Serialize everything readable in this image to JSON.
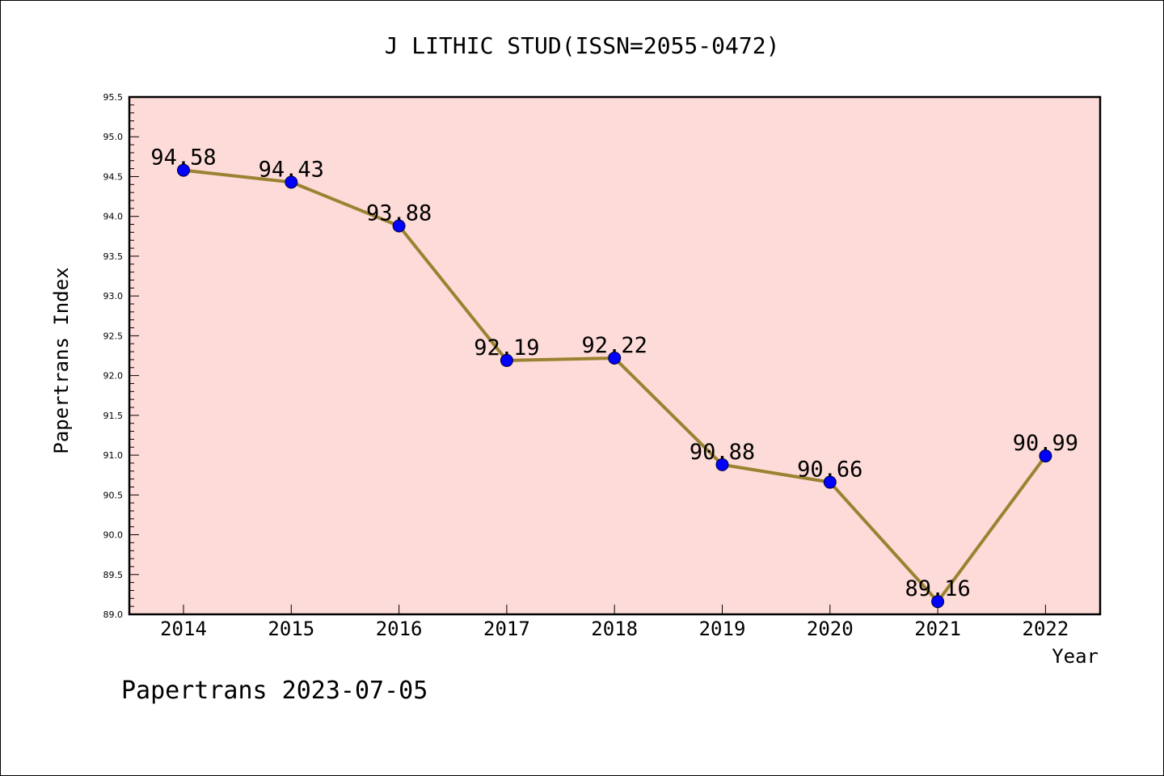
{
  "chart_data": {
    "type": "line",
    "title": "J LITHIC STUD(ISSN=2055-0472)",
    "xlabel": "Year",
    "ylabel": "Papertrans Index",
    "x": [
      "2014",
      "2015",
      "2016",
      "2017",
      "2018",
      "2019",
      "2020",
      "2021",
      "2022"
    ],
    "values": [
      94.58,
      94.43,
      93.88,
      92.19,
      92.22,
      90.88,
      90.66,
      89.16,
      90.99
    ],
    "data_labels": [
      "94.58",
      "94.43",
      "93.88",
      "92.19",
      "92.22",
      "90.88",
      "90.66",
      "89.16",
      "90.99"
    ],
    "ylim": [
      89.0,
      95.5
    ],
    "yticks": [
      "89.0",
      "89.5",
      "90.0",
      "90.5",
      "91.0",
      "91.5",
      "92.0",
      "92.5",
      "93.0",
      "93.5",
      "94.0",
      "94.5",
      "95.0",
      "95.5"
    ],
    "grid": false,
    "footer": "Papertrans 2023-07-05",
    "colors": {
      "plot_background": "#fddbd8",
      "line": "#9b8232",
      "marker": "#0000ff"
    }
  }
}
